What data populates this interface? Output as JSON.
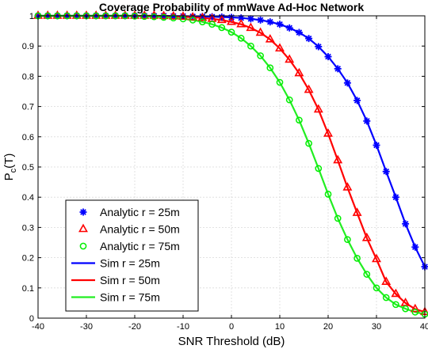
{
  "chart_data": {
    "type": "line",
    "title": "Coverage Probability of mmWave Ad-Hoc Network",
    "xlabel": "SNR Threshold (dB)",
    "ylabel_main": "P",
    "ylabel_sub": "c",
    "ylabel_tail": "(T)",
    "xlim": [
      -40,
      40
    ],
    "ylim": [
      0,
      1
    ],
    "xticks": [
      -40,
      -30,
      -20,
      -10,
      0,
      10,
      20,
      30,
      40
    ],
    "yticks": [
      0,
      0.1,
      0.2,
      0.3,
      0.4,
      0.5,
      0.6,
      0.7,
      0.8,
      0.9,
      1
    ],
    "ytick_labels": [
      "0",
      "0.1",
      "0.2",
      "0.3",
      "0.4",
      "0.5",
      "0.6",
      "0.7",
      "0.8",
      "0.9",
      "1"
    ],
    "grid": true,
    "legend_position": "bottom-left",
    "x": [
      -40,
      -38,
      -36,
      -34,
      -32,
      -30,
      -28,
      -26,
      -24,
      -22,
      -20,
      -18,
      -16,
      -14,
      -12,
      -10,
      -8,
      -6,
      -4,
      -2,
      0,
      2,
      4,
      6,
      8,
      10,
      12,
      14,
      16,
      18,
      20,
      22,
      24,
      26,
      28,
      30,
      32,
      34,
      36,
      38,
      40
    ],
    "series": [
      {
        "name": "Analytic r = 25m",
        "style": "marker",
        "marker": "asterisk",
        "color": "#0000ff",
        "values": [
          1,
          1,
          1,
          1,
          1,
          1,
          1,
          1,
          1,
          1,
          1,
          1,
          1,
          1,
          0.999,
          0.999,
          0.998,
          0.998,
          0.997,
          0.996,
          0.995,
          0.993,
          0.99,
          0.986,
          0.98,
          0.972,
          0.96,
          0.945,
          0.925,
          0.898,
          0.865,
          0.825,
          0.778,
          0.72,
          0.652,
          0.572,
          0.485,
          0.4,
          0.312,
          0.235,
          0.17
        ]
      },
      {
        "name": "Analytic r = 50m",
        "style": "marker",
        "marker": "triangle",
        "color": "#ff0000",
        "values": [
          1,
          1,
          1,
          1,
          1,
          1,
          1,
          1,
          1,
          1,
          1,
          1,
          1,
          0.999,
          0.998,
          0.997,
          0.995,
          0.993,
          0.99,
          0.986,
          0.98,
          0.972,
          0.96,
          0.944,
          0.922,
          0.892,
          0.855,
          0.81,
          0.755,
          0.69,
          0.61,
          0.522,
          0.432,
          0.348,
          0.265,
          0.195,
          0.12,
          0.08,
          0.05,
          0.03,
          0.02
        ]
      },
      {
        "name": "Analytic r = 75m",
        "style": "marker",
        "marker": "circle",
        "color": "#00ee00",
        "values": [
          1,
          1,
          1,
          1,
          1,
          1,
          1,
          1,
          1,
          1,
          0.999,
          0.998,
          0.997,
          0.995,
          0.993,
          0.99,
          0.986,
          0.98,
          0.972,
          0.961,
          0.946,
          0.926,
          0.9,
          0.868,
          0.828,
          0.78,
          0.722,
          0.655,
          0.578,
          0.495,
          0.41,
          0.33,
          0.26,
          0.198,
          0.145,
          0.1,
          0.068,
          0.045,
          0.031,
          0.02,
          0.013
        ]
      },
      {
        "name": "Sim r = 25m",
        "style": "line",
        "color": "#0000ff",
        "values": [
          1,
          1,
          1,
          1,
          1,
          1,
          1,
          1,
          1,
          1,
          1,
          1,
          1,
          1,
          0.999,
          0.999,
          0.998,
          0.998,
          0.997,
          0.996,
          0.995,
          0.993,
          0.99,
          0.986,
          0.98,
          0.972,
          0.96,
          0.945,
          0.925,
          0.898,
          0.865,
          0.825,
          0.778,
          0.72,
          0.652,
          0.572,
          0.485,
          0.4,
          0.312,
          0.235,
          0.17
        ]
      },
      {
        "name": "Sim r = 50m",
        "style": "line",
        "color": "#ff0000",
        "values": [
          1,
          1,
          1,
          1,
          1,
          1,
          1,
          1,
          1,
          1,
          1,
          1,
          1,
          0.999,
          0.998,
          0.997,
          0.995,
          0.993,
          0.99,
          0.986,
          0.98,
          0.972,
          0.96,
          0.944,
          0.922,
          0.892,
          0.855,
          0.81,
          0.755,
          0.69,
          0.61,
          0.522,
          0.432,
          0.348,
          0.265,
          0.195,
          0.12,
          0.08,
          0.05,
          0.03,
          0.02
        ]
      },
      {
        "name": "Sim r = 75m",
        "style": "line",
        "color": "#22ee22",
        "values": [
          1,
          1,
          1,
          1,
          1,
          1,
          1,
          1,
          1,
          1,
          0.999,
          0.998,
          0.997,
          0.995,
          0.993,
          0.99,
          0.986,
          0.98,
          0.972,
          0.961,
          0.946,
          0.926,
          0.9,
          0.868,
          0.828,
          0.78,
          0.722,
          0.655,
          0.578,
          0.495,
          0.41,
          0.33,
          0.26,
          0.198,
          0.145,
          0.1,
          0.068,
          0.045,
          0.031,
          0.02,
          0.013
        ]
      }
    ]
  }
}
